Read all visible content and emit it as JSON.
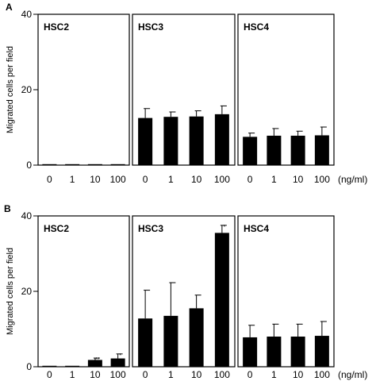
{
  "chart_data": [
    {
      "type": "bar",
      "panel_label": "A",
      "ylabel": "Migrated cells per field",
      "ylim": [
        0,
        40
      ],
      "yticks": [
        "0",
        "20",
        "40"
      ],
      "categories": [
        "0",
        "1",
        "10",
        "100"
      ],
      "unit_label": "(ng/ml)",
      "panels": [
        {
          "title": "HSC2",
          "values": [
            0.2,
            0,
            0,
            0.2
          ],
          "errors": [
            0,
            0,
            0,
            0
          ],
          "annotations": [
            "",
            "",
            "",
            ""
          ]
        },
        {
          "title": "HSC3",
          "values": [
            12.5,
            12.8,
            12.9,
            13.5
          ],
          "errors": [
            2.5,
            1.3,
            1.5,
            2.2
          ],
          "annotations": [
            "",
            "",
            "",
            ""
          ]
        },
        {
          "title": "HSC4",
          "values": [
            7.5,
            7.8,
            7.8,
            7.9
          ],
          "errors": [
            1.0,
            1.9,
            1.2,
            2.2
          ],
          "annotations": [
            "",
            "",
            "",
            ""
          ]
        }
      ]
    },
    {
      "type": "bar",
      "panel_label": "B",
      "ylabel": "Migrated cells per field",
      "ylim": [
        0,
        40
      ],
      "yticks": [
        "0",
        "20",
        "40"
      ],
      "categories": [
        "0",
        "1",
        "10",
        "100"
      ],
      "unit_label": "(ng/ml)",
      "panels": [
        {
          "title": "HSC2",
          "values": [
            0.2,
            0.2,
            1.8,
            2.2
          ],
          "errors": [
            0,
            0,
            0.5,
            1.2
          ],
          "annotations": [
            "",
            "",
            "**",
            "*"
          ]
        },
        {
          "title": "HSC3",
          "values": [
            12.8,
            13.5,
            15.5,
            35.5
          ],
          "errors": [
            7.5,
            8.8,
            3.5,
            2.0
          ],
          "annotations": [
            "",
            "",
            "",
            "*"
          ]
        },
        {
          "title": "HSC4",
          "values": [
            7.8,
            8.0,
            8.0,
            8.2
          ],
          "errors": [
            3.2,
            3.3,
            3.3,
            3.8
          ],
          "annotations": [
            "",
            "",
            "",
            ""
          ]
        }
      ]
    }
  ]
}
